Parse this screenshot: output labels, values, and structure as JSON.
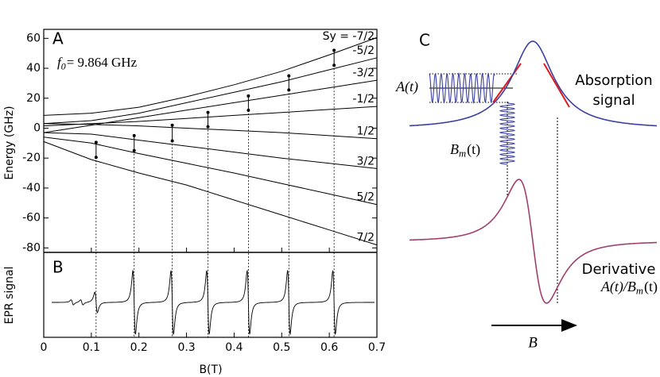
{
  "chart_data": [
    {
      "type": "line",
      "panel_label": "A",
      "annotation": {
        "symbol": "f",
        "subscript": "0",
        "text": "= 9.864 GHz"
      },
      "ylabel": "Energy (GHz)",
      "x": [
        0,
        0.1,
        0.2,
        0.3,
        0.4,
        0.5,
        0.6,
        0.7
      ],
      "series": [
        {
          "name": "Sy = -7/2",
          "color": "#000000",
          "values": [
            8.5,
            10,
            14,
            21,
            29,
            38,
            49,
            60.5
          ]
        },
        {
          "name": "-5/2",
          "color": "#000000",
          "values": [
            3,
            5,
            10,
            17,
            24,
            31,
            39,
            47
          ]
        },
        {
          "name": "-3/2",
          "color": "#000000",
          "values": [
            -3,
            2,
            7,
            12,
            17,
            22,
            27,
            32
          ]
        },
        {
          "name": "-1/2",
          "color": "#000000",
          "values": [
            1.5,
            3,
            4.5,
            6.5,
            8.5,
            10.5,
            12.5,
            14.5
          ]
        },
        {
          "name": "1/2",
          "color": "#000000",
          "values": [
            3,
            2.5,
            1.5,
            0,
            -1.5,
            -3,
            -5,
            -7
          ]
        },
        {
          "name": "3/2",
          "color": "#000000",
          "values": [
            -3,
            -4,
            -8,
            -12,
            -16,
            -20,
            -23.5,
            -27
          ]
        },
        {
          "name": "5/2",
          "color": "#000000",
          "values": [
            -6,
            -10,
            -17,
            -23.5,
            -30,
            -37,
            -44,
            -51
          ]
        },
        {
          "name": "7/2",
          "color": "#000000",
          "values": [
            -9,
            -21,
            -30,
            -38,
            -48,
            -58,
            -68,
            -78
          ]
        }
      ],
      "transitions": {
        "x": [
          0.11,
          0.19,
          0.27,
          0.345,
          0.43,
          0.515,
          0.61
        ],
        "upper": [
          -9.5,
          -5,
          2,
          10.5,
          21.5,
          35,
          52
        ],
        "lower": [
          -19.5,
          -15,
          -8.5,
          1,
          12,
          25.5,
          42
        ]
      },
      "xlim": [
        0,
        0.7
      ],
      "ylim": [
        -83,
        66
      ],
      "yticks": [
        -80,
        -60,
        -40,
        -20,
        0,
        20,
        40,
        60
      ]
    },
    {
      "type": "signal",
      "panel_label": "B",
      "ylabel": "EPR signal",
      "xlabel": "B(T)",
      "xlim": [
        0,
        0.7
      ],
      "xticks": [
        0,
        0.1,
        0.2,
        0.3,
        0.4,
        0.5,
        0.6,
        0.7
      ]
    }
  ],
  "diagram": {
    "panel_label": "C",
    "drive_label": "A(t)",
    "modulation_label": {
      "symbol": "B",
      "subscript": "m",
      "text": "(t)"
    },
    "absorption_label": [
      "Absorption",
      "signal"
    ],
    "derivative_label": "Derivative",
    "ratio_label": {
      "symbol": "A(t)/B",
      "subscript": "m",
      "text": "(t)"
    },
    "axis_label": "B"
  }
}
